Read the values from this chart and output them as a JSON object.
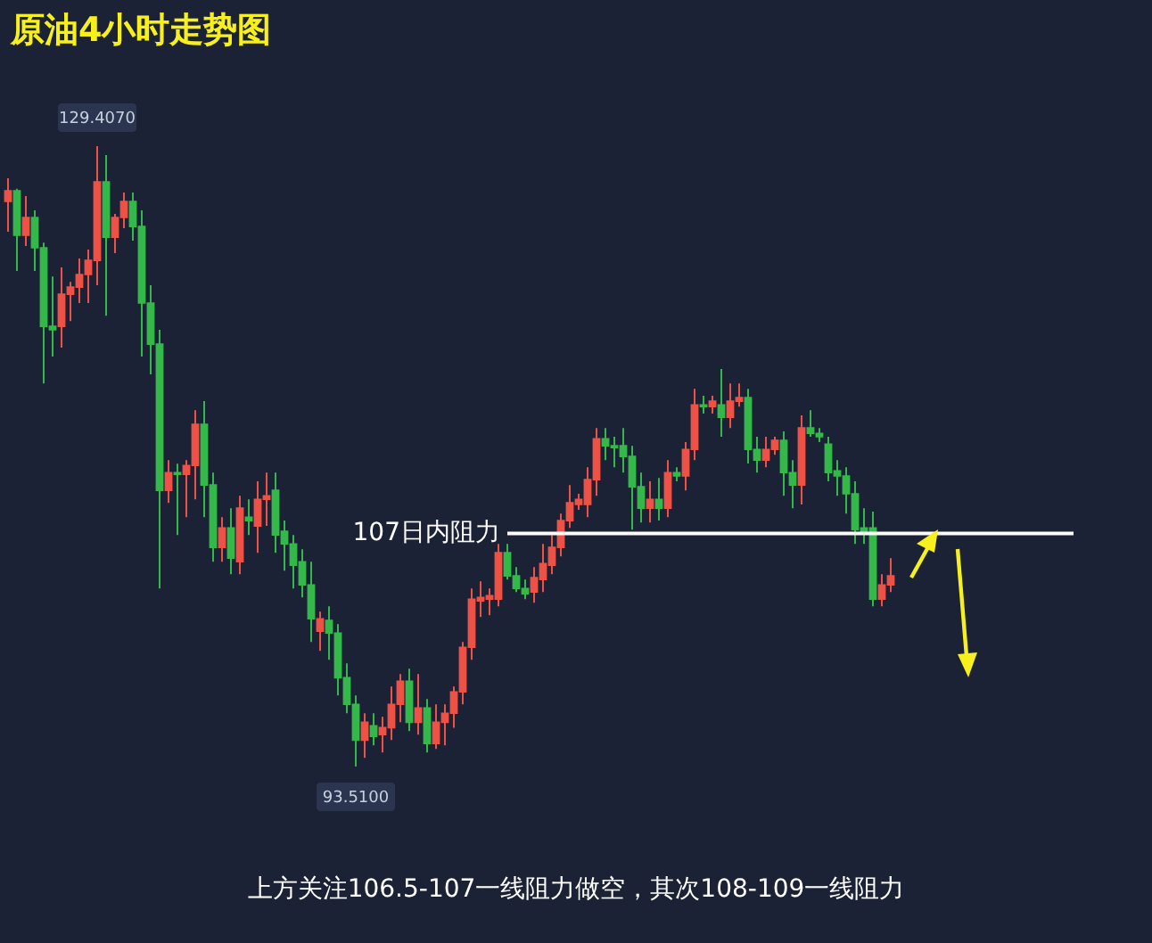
{
  "chart_data": {
    "type": "candlestick",
    "title": "原油4小时走势图",
    "categories": [
      null,
      null,
      null,
      null,
      null,
      null,
      null,
      null,
      null,
      null,
      null,
      null,
      null,
      null,
      null,
      null,
      null,
      null,
      null,
      null,
      null,
      null,
      null,
      null,
      null,
      null,
      null,
      null,
      null,
      null,
      null,
      null,
      null,
      null,
      null,
      null,
      null,
      null,
      null,
      null,
      null,
      null,
      null,
      null,
      null,
      null,
      null,
      null,
      null,
      null,
      null,
      null,
      null,
      null,
      null,
      null,
      null,
      null,
      null,
      null,
      null,
      null,
      null,
      null,
      null,
      null,
      null,
      null,
      null,
      null,
      null,
      null,
      null,
      null,
      null,
      null,
      null,
      null,
      null,
      null,
      null,
      null,
      null,
      null,
      null,
      null,
      null,
      null,
      null,
      null,
      null,
      null,
      null,
      null,
      null,
      null,
      null,
      null,
      null,
      null
    ],
    "ohlc": [
      [
        126.21,
        127.55,
        124.45,
        126.83
      ],
      [
        126.83,
        126.94,
        122.18,
        124.25
      ],
      [
        124.25,
        126.52,
        123.63,
        125.28
      ],
      [
        125.28,
        125.69,
        122.18,
        123.53
      ],
      [
        123.53,
        123.83,
        115.68,
        118.98
      ],
      [
        118.98,
        121.87,
        117.23,
        118.78
      ],
      [
        118.98,
        122.39,
        117.75,
        120.84
      ],
      [
        120.84,
        121.56,
        119.29,
        121.25
      ],
      [
        121.25,
        122.91,
        120.33,
        121.98
      ],
      [
        121.98,
        123.42,
        120.33,
        122.8
      ],
      [
        122.8,
        129.407,
        121.36,
        127.34
      ],
      [
        127.34,
        128.89,
        119.6,
        124.14
      ],
      [
        124.14,
        125.49,
        123.22,
        125.28
      ],
      [
        125.28,
        126.72,
        124.66,
        126.21
      ],
      [
        126.21,
        126.72,
        123.94,
        124.76
      ],
      [
        124.76,
        125.69,
        117.23,
        120.33
      ],
      [
        120.33,
        121.36,
        116.2,
        117.95
      ],
      [
        117.95,
        118.78,
        103.81,
        109.49
      ],
      [
        109.49,
        111.24,
        108.77,
        110.52
      ],
      [
        110.52,
        111.03,
        106.91,
        110.42
      ],
      [
        110.42,
        111.24,
        107.94,
        110.93
      ],
      [
        110.93,
        114.13,
        108.97,
        113.31
      ],
      [
        113.31,
        114.65,
        107.94,
        109.8
      ],
      [
        109.8,
        110.52,
        105.36,
        106.19
      ],
      [
        106.19,
        107.94,
        105.36,
        107.32
      ],
      [
        107.32,
        108.46,
        104.64,
        105.57
      ],
      [
        105.36,
        109.18,
        104.64,
        108.46
      ],
      [
        107.94,
        108.97,
        106.91,
        107.74
      ],
      [
        107.43,
        110.01,
        105.88,
        108.97
      ],
      [
        108.97,
        110.52,
        107.43,
        109.18
      ],
      [
        109.49,
        110.52,
        105.88,
        106.91
      ],
      [
        107.12,
        107.74,
        104.85,
        106.39
      ],
      [
        106.39,
        106.91,
        103.81,
        105.16
      ],
      [
        105.36,
        106.08,
        103.3,
        104.02
      ],
      [
        104.02,
        105.36,
        100.72,
        102.06
      ],
      [
        101.34,
        102.47,
        100.2,
        102.06
      ],
      [
        101.96,
        102.78,
        99.69,
        101.23
      ],
      [
        101.23,
        101.75,
        97.62,
        98.65
      ],
      [
        98.65,
        99.48,
        96.59,
        97.11
      ],
      [
        97.11,
        97.62,
        93.51,
        95.04
      ],
      [
        95.04,
        96.59,
        94.01,
        96.07
      ],
      [
        95.87,
        96.59,
        94.73,
        95.25
      ],
      [
        95.35,
        96.39,
        94.32,
        95.76
      ],
      [
        95.76,
        98.14,
        95.04,
        97.11
      ],
      [
        97.11,
        98.86,
        96.07,
        98.45
      ],
      [
        98.45,
        99.17,
        95.56,
        96.07
      ],
      [
        96.07,
        98.86,
        95.35,
        96.9
      ],
      [
        96.9,
        97.42,
        94.32,
        94.84
      ],
      [
        94.84,
        97.11,
        94.53,
        96.07
      ],
      [
        96.07,
        97.11,
        94.73,
        96.59
      ],
      [
        96.59,
        98.14,
        95.76,
        97.83
      ],
      [
        97.83,
        100.72,
        97.11,
        100.41
      ],
      [
        100.41,
        103.81,
        99.69,
        103.19
      ],
      [
        103.09,
        104.23,
        102.16,
        103.3
      ],
      [
        103.19,
        103.81,
        102.27,
        103.4
      ],
      [
        103.19,
        106.39,
        102.78,
        105.88
      ],
      [
        105.88,
        106.39,
        104.33,
        104.54
      ],
      [
        104.54,
        105.05,
        103.61,
        103.81
      ],
      [
        103.81,
        104.33,
        103.19,
        103.5
      ],
      [
        103.61,
        105.05,
        102.99,
        104.44
      ],
      [
        104.33,
        106.39,
        103.61,
        105.26
      ],
      [
        105.16,
        106.91,
        104.64,
        106.19
      ],
      [
        106.19,
        108.15,
        105.67,
        107.74
      ],
      [
        107.74,
        109.8,
        107.32,
        108.77
      ],
      [
        108.67,
        109.29,
        108.36,
        108.97
      ],
      [
        108.67,
        110.83,
        107.94,
        110.11
      ],
      [
        110.11,
        113.1,
        109.18,
        112.48
      ],
      [
        112.48,
        113.1,
        111.24,
        112.07
      ],
      [
        112.07,
        112.59,
        110.83,
        111.97
      ],
      [
        112.07,
        113.1,
        110.52,
        111.45
      ],
      [
        111.45,
        112.07,
        107.22,
        109.7
      ],
      [
        109.7,
        110.52,
        107.63,
        108.46
      ],
      [
        108.46,
        110.01,
        107.63,
        108.97
      ],
      [
        108.97,
        110.21,
        107.74,
        108.46
      ],
      [
        108.46,
        111.24,
        107.94,
        110.52
      ],
      [
        110.52,
        110.83,
        110.01,
        110.32
      ],
      [
        110.32,
        112.28,
        109.49,
        111.86
      ],
      [
        111.86,
        115.37,
        111.24,
        114.44
      ],
      [
        114.44,
        114.96,
        113.93,
        114.34
      ],
      [
        114.34,
        114.96,
        113.93,
        114.65
      ],
      [
        114.44,
        116.51,
        112.59,
        113.72
      ],
      [
        113.72,
        115.68,
        113.1,
        114.65
      ],
      [
        114.65,
        115.68,
        114.34,
        114.86
      ],
      [
        114.86,
        115.37,
        111.04,
        111.86
      ],
      [
        111.86,
        112.59,
        110.52,
        111.24
      ],
      [
        111.24,
        112.59,
        110.83,
        111.86
      ],
      [
        111.86,
        112.59,
        111.55,
        112.38
      ],
      [
        112.38,
        112.9,
        109.18,
        110.52
      ],
      [
        110.52,
        111.24,
        108.46,
        109.8
      ],
      [
        109.8,
        113.83,
        108.67,
        113.1
      ],
      [
        113.1,
        114.13,
        112.59,
        112.79
      ],
      [
        112.79,
        113.1,
        112.28,
        112.59
      ],
      [
        112.17,
        112.59,
        110.01,
        110.52
      ],
      [
        110.62,
        111.24,
        109.18,
        110.32
      ],
      [
        110.32,
        110.83,
        108.15,
        109.29
      ],
      [
        109.29,
        110.01,
        106.39,
        107.22
      ],
      [
        107.32,
        108.46,
        106.39,
        107.12
      ],
      [
        107.32,
        108.26,
        102.78,
        103.19
      ],
      [
        103.19,
        104.64,
        102.78,
        104.02
      ],
      [
        104.02,
        105.57,
        103.61,
        104.54
      ]
    ],
    "colors": [
      "#ee5146",
      "#35b84a",
      "#ee5146",
      "#35b84a",
      "#35b84a",
      "#35b84a",
      "#ee5146",
      "#ee5146",
      "#ee5146",
      "#ee5146",
      "#ee5146",
      "#35b84a",
      "#ee5146",
      "#ee5146",
      "#35b84a",
      "#35b84a",
      "#35b84a",
      "#35b84a",
      "#ee5146",
      "#35b84a",
      "#ee5146",
      "#ee5146",
      "#35b84a",
      "#35b84a",
      "#ee5146",
      "#35b84a",
      "#ee5146",
      "#35b84a",
      "#ee5146",
      "#ee5146",
      "#35b84a",
      "#35b84a",
      "#35b84a",
      "#35b84a",
      "#35b84a",
      "#ee5146",
      "#35b84a",
      "#35b84a",
      "#35b84a",
      "#35b84a",
      "#ee5146",
      "#35b84a",
      "#ee5146",
      "#ee5146",
      "#ee5146",
      "#35b84a",
      "#ee5146",
      "#35b84a",
      "#ee5146",
      "#ee5146",
      "#ee5146",
      "#ee5146",
      "#ee5146",
      "#ee5146",
      "#ee5146",
      "#ee5146",
      "#35b84a",
      "#35b84a",
      "#35b84a",
      "#ee5146",
      "#ee5146",
      "#ee5146",
      "#ee5146",
      "#ee5146",
      "#ee5146",
      "#ee5146",
      "#ee5146",
      "#35b84a",
      "#35b84a",
      "#35b84a",
      "#35b84a",
      "#35b84a",
      "#ee5146",
      "#35b84a",
      "#ee5146",
      "#35b84a",
      "#ee5146",
      "#ee5146",
      "#35b84a",
      "#ee5146",
      "#35b84a",
      "#ee5146",
      "#ee5146",
      "#35b84a",
      "#35b84a",
      "#ee5146",
      "#ee5146",
      "#35b84a",
      "#35b84a",
      "#ee5146",
      "#35b84a",
      "#35b84a",
      "#35b84a",
      "#35b84a",
      "#35b84a",
      "#35b84a",
      "#35b84a",
      "#35b84a",
      "#ee5146",
      "#ee5146"
    ],
    "ref_lines": [
      {
        "axis": "y",
        "value": 107,
        "label": "107日内阻力",
        "color": "#ffffff"
      }
    ],
    "annotations": [
      {
        "text": "129.4070",
        "y": 129.407
      },
      {
        "text": "93.5100",
        "y": 93.51
      },
      "上方关注106.5-107一线阻力做空，其次108-109一线阻力"
    ]
  }
}
